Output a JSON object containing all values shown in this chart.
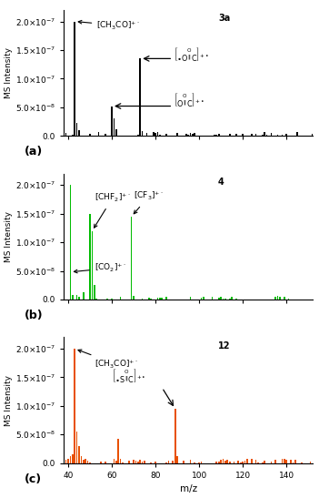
{
  "panels": [
    {
      "label": "(a)",
      "color": "black",
      "ylim": [
        0,
        2.2e-07
      ],
      "yticks": [
        0,
        5e-08,
        1e-07,
        1.5e-07,
        2e-07
      ],
      "major_peaks": [
        {
          "mz": 43,
          "intensity": 2e-07
        },
        {
          "mz": 44,
          "intensity": 2.2e-08
        },
        {
          "mz": 45,
          "intensity": 1e-08
        },
        {
          "mz": 60,
          "intensity": 5.2e-08
        },
        {
          "mz": 61,
          "intensity": 3e-08
        },
        {
          "mz": 62,
          "intensity": 1.2e-08
        },
        {
          "mz": 73,
          "intensity": 1.35e-07
        },
        {
          "mz": 74,
          "intensity": 8e-09
        }
      ],
      "noise_seed": 10,
      "noise_density": 0.4,
      "noise_max": 7e-09
    },
    {
      "label": "(b)",
      "color": "#00bb00",
      "ylim": [
        0,
        2.2e-07
      ],
      "yticks": [
        0,
        5e-08,
        1e-07,
        1.5e-07,
        2e-07
      ],
      "major_peaks": [
        {
          "mz": 41,
          "intensity": 2e-07
        },
        {
          "mz": 42,
          "intensity": 8e-09
        },
        {
          "mz": 44,
          "intensity": 8e-09
        },
        {
          "mz": 47,
          "intensity": 1.2e-08
        },
        {
          "mz": 50,
          "intensity": 1.5e-07
        },
        {
          "mz": 51,
          "intensity": 1.2e-07
        },
        {
          "mz": 52,
          "intensity": 2.5e-08
        },
        {
          "mz": 69,
          "intensity": 1.45e-07
        },
        {
          "mz": 70,
          "intensity": 6e-09
        }
      ],
      "noise_seed": 20,
      "noise_density": 0.35,
      "noise_max": 6e-09
    },
    {
      "label": "(c)",
      "color": "#e85000",
      "ylim": [
        0,
        2.2e-07
      ],
      "yticks": [
        0,
        5e-08,
        1e-07,
        1.5e-07,
        2e-07
      ],
      "major_peaks": [
        {
          "mz": 41,
          "intensity": 1.2e-08
        },
        {
          "mz": 42,
          "intensity": 1.5e-08
        },
        {
          "mz": 43,
          "intensity": 2e-07
        },
        {
          "mz": 44,
          "intensity": 5.5e-08
        },
        {
          "mz": 45,
          "intensity": 3e-08
        },
        {
          "mz": 46,
          "intensity": 1.2e-08
        },
        {
          "mz": 47,
          "intensity": 6e-09
        },
        {
          "mz": 63,
          "intensity": 4.2e-08
        },
        {
          "mz": 64,
          "intensity": 8e-09
        },
        {
          "mz": 89,
          "intensity": 9.5e-08
        },
        {
          "mz": 90,
          "intensity": 1.2e-08
        }
      ],
      "noise_seed": 30,
      "noise_density": 0.45,
      "noise_max": 8e-09
    }
  ],
  "xlim": [
    38,
    152
  ],
  "xticks": [
    40,
    60,
    80,
    100,
    120,
    140
  ],
  "xlabel": "m/z",
  "ylabel": "MS Intensity"
}
